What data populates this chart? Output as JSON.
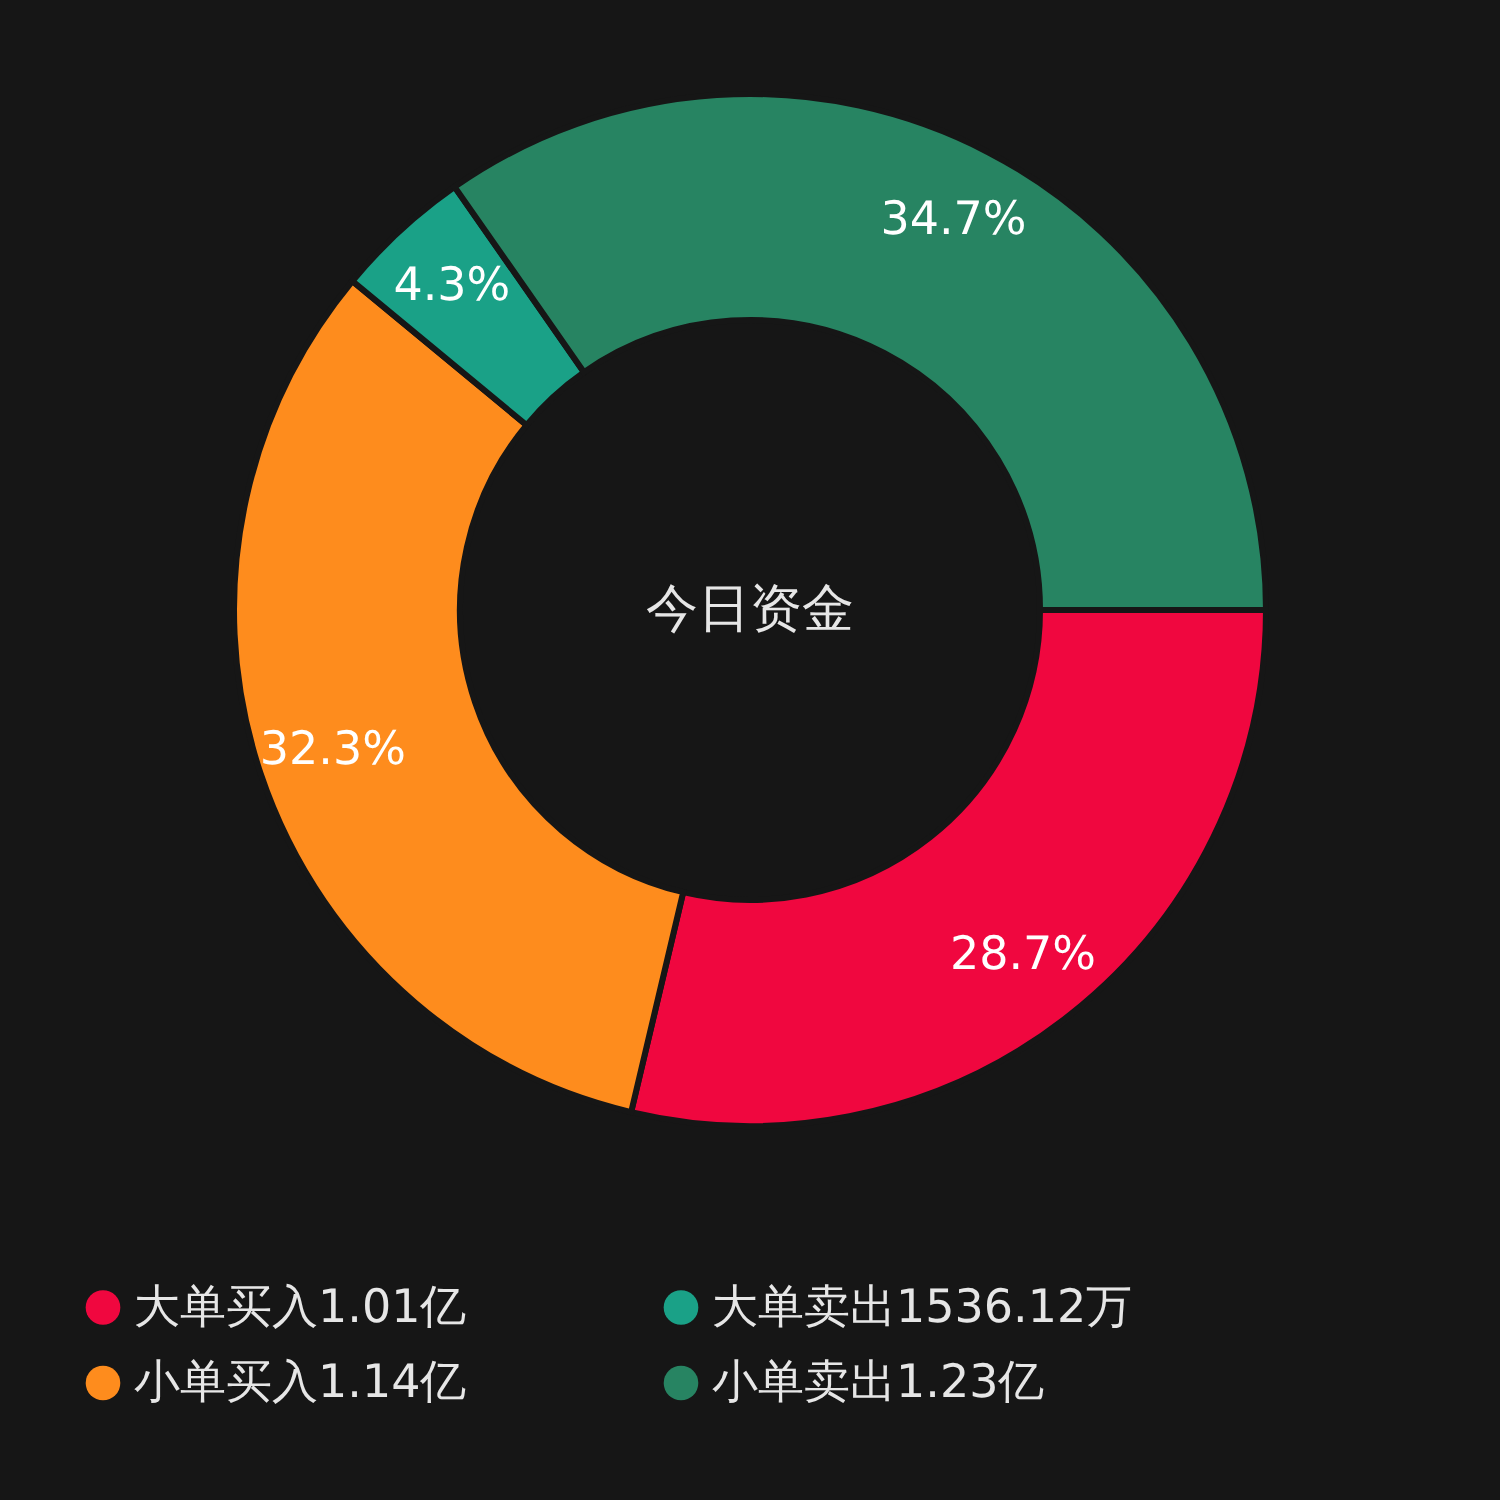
{
  "chart_data": {
    "type": "donut",
    "annotations": [
      "今日资金"
    ],
    "categories": [
      "大单买入1.01亿",
      "小单买入1.14亿",
      "大单卖出1536.12万",
      "小单卖出1.23亿"
    ],
    "values": [
      28.7,
      32.3,
      4.3,
      34.7
    ],
    "colors": [
      "#f0073f",
      "#fe8c1d",
      "#1aa187",
      "#278462"
    ],
    "value_labels": [
      "28.7%",
      "32.3%",
      "4.3%",
      "34.7%"
    ],
    "legend": "bottom"
  }
}
